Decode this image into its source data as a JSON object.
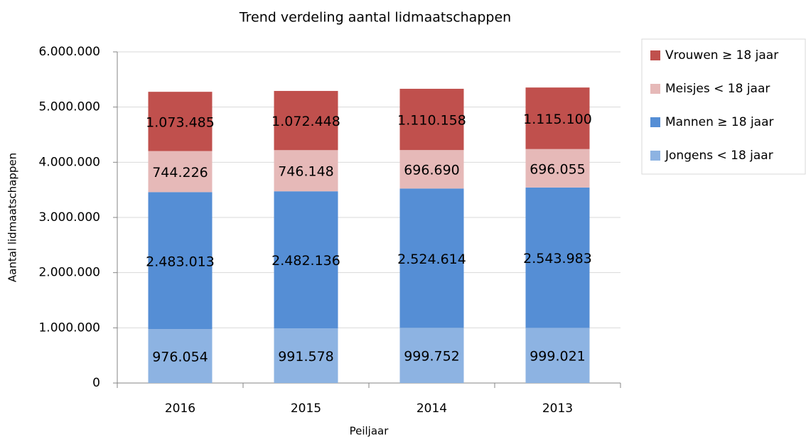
{
  "chart_data": {
    "type": "stacked_bar",
    "title": "Trend verdeling aantal lidmaatschappen",
    "x_label": "Peiljaar",
    "y_label": "Aantal lidmaatschappen",
    "categories": [
      "2016",
      "2015",
      "2014",
      "2013"
    ],
    "series": [
      {
        "name": "Jongens < 18 jaar",
        "color": "#8db3e2",
        "values": [
          976054,
          991578,
          999752,
          999021
        ],
        "value_labels": [
          "976.054",
          "991.578",
          "999.752",
          "999.021"
        ]
      },
      {
        "name": "Mannen ≥ 18 jaar",
        "color": "#558ed5",
        "values": [
          2483013,
          2482136,
          2524614,
          2543983
        ],
        "value_labels": [
          "2.483.013",
          "2.482.136",
          "2.524.614",
          "2.543.983"
        ]
      },
      {
        "name": "Meisjes < 18 jaar",
        "color": "#e6b9b8",
        "values": [
          744226,
          746148,
          696690,
          696055
        ],
        "value_labels": [
          "744.226",
          "746.148",
          "696.690",
          "696.055"
        ]
      },
      {
        "name": "Vrouwen ≥ 18 jaar",
        "color": "#c0504d",
        "values": [
          1073485,
          1072448,
          1110158,
          1115100
        ],
        "value_labels": [
          "1.073.485",
          "1.072.448",
          "1.110.158",
          "1.115.100"
        ]
      }
    ],
    "ylim": [
      0,
      6000000
    ],
    "yticks": [
      0,
      {
        "value": 1000000,
        "label": "1.000.000"
      },
      {
        "value": 2000000,
        "label": "2.000.000"
      },
      {
        "value": 3000000,
        "label": "3.000.000"
      },
      {
        "value": 4000000,
        "label": "4.000.000"
      },
      {
        "value": 5000000,
        "label": "5.000.000"
      },
      {
        "value": 6000000,
        "label": "6.000.000"
      }
    ],
    "grid": true,
    "legend": "right"
  }
}
